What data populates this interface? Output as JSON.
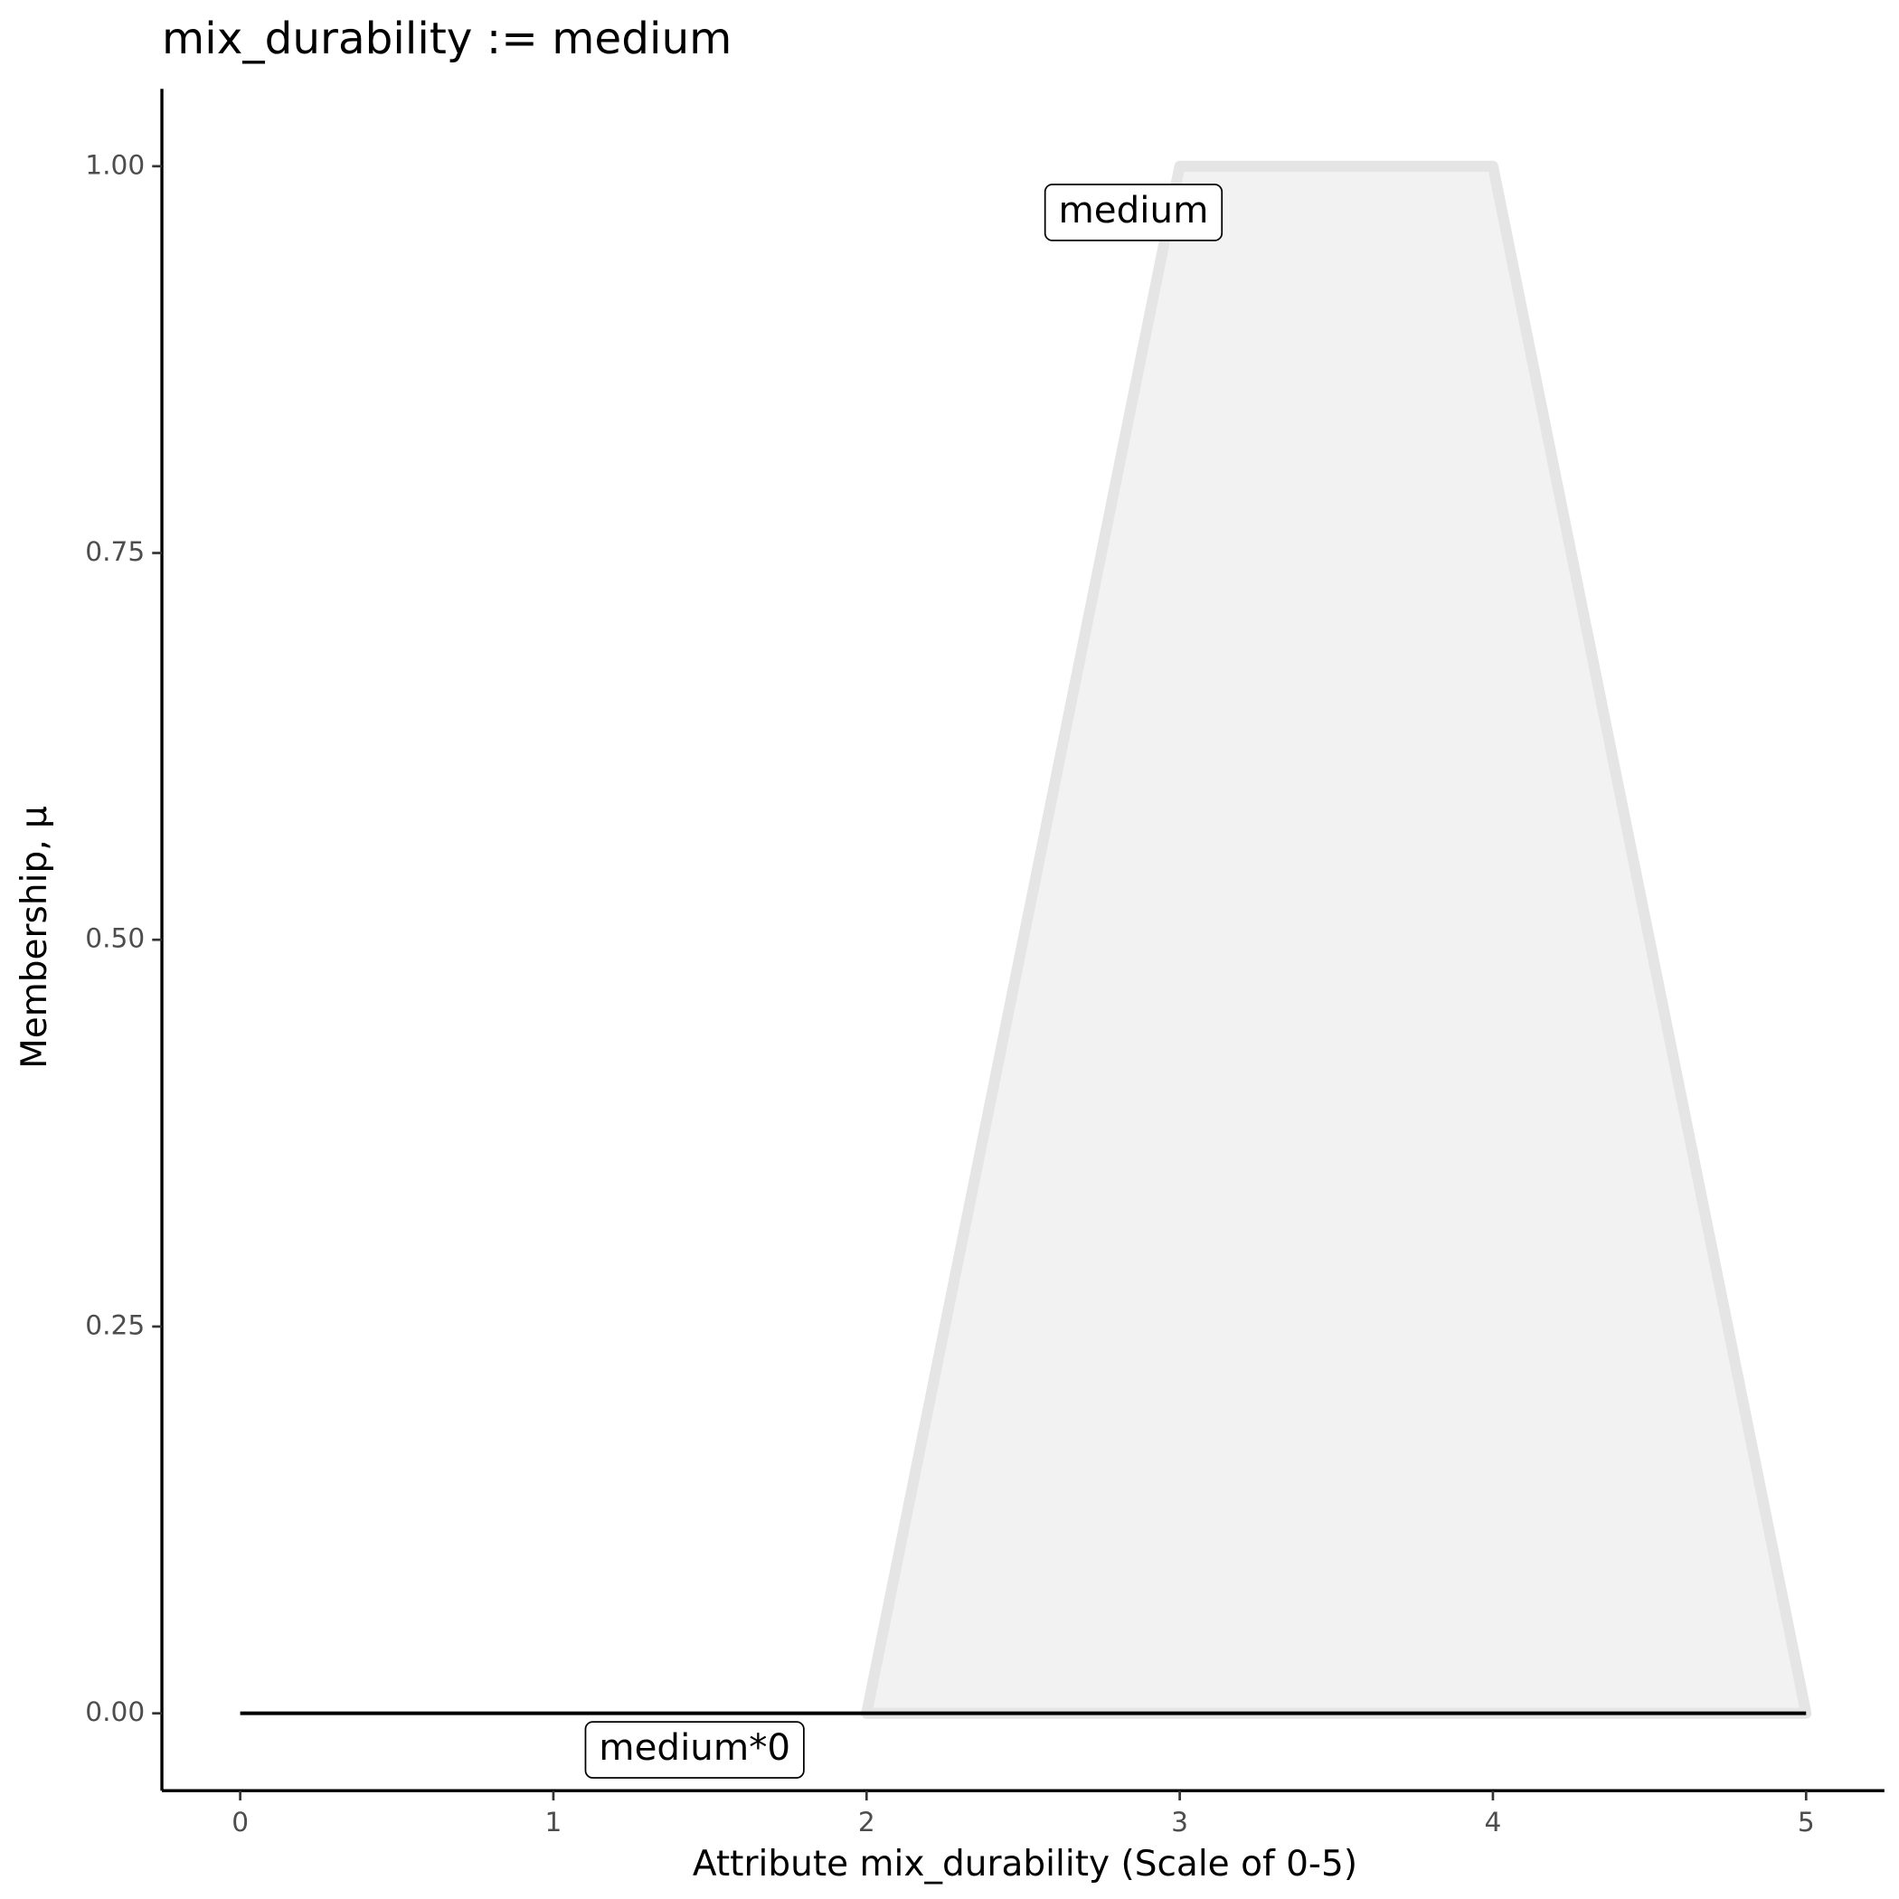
{
  "chart_data": {
    "type": "area",
    "title": "mix_durability := medium",
    "x_label": "Attribute mix_durability (Scale of 0-5)",
    "y_label": "Membership, μ",
    "xlim": [
      -0.25,
      5.25
    ],
    "ylim": [
      -0.05,
      1.05
    ],
    "xticks": [
      0,
      1,
      2,
      3,
      4,
      5
    ],
    "yticks": [
      {
        "value": 0,
        "label": "0.00"
      },
      {
        "value": 0.25,
        "label": "0.25"
      },
      {
        "value": 0.5,
        "label": "0.50"
      },
      {
        "value": 0.75,
        "label": "0.75"
      },
      {
        "value": 1,
        "label": "1.00"
      }
    ],
    "grid": false,
    "series": [
      {
        "name": "medium",
        "color": "#e5e5e5",
        "fill": "#f2f2f2",
        "x": [
          2,
          3,
          4,
          5
        ],
        "values": [
          0,
          1,
          1,
          0
        ]
      },
      {
        "name": "medium*0",
        "color": "#000000",
        "x": [
          0,
          5
        ],
        "values": [
          0,
          0
        ]
      }
    ]
  }
}
